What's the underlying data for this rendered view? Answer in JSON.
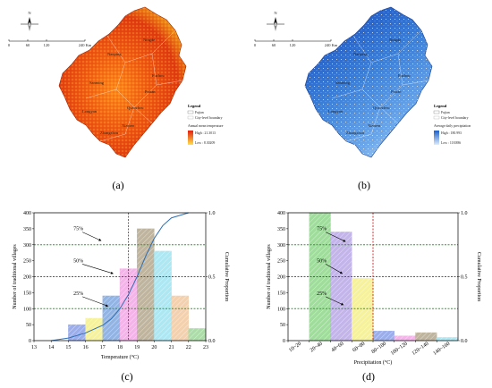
{
  "panels": {
    "a": {
      "caption": "(a)",
      "scale_labels": [
        "0",
        "60",
        "120",
        "240 Km"
      ],
      "north": "N",
      "cities": [
        "Ningde",
        "Nanping",
        "Sanming",
        "Fuzhou",
        "Putian",
        "Quanzhou",
        "Longyan",
        "Xiamen",
        "Zhangzhou"
      ],
      "legend": {
        "title": "Legend",
        "items": [
          "Fujian",
          "City-level boundary"
        ],
        "ramp_title": "Annual mean temperature",
        "high": "High : 21.3013",
        "low": "Low : 8.30209"
      }
    },
    "b": {
      "caption": "(b)",
      "scale_labels": [
        "0",
        "60",
        "120",
        "240 Km"
      ],
      "north": "N",
      "cities": [
        "Ningde",
        "Nanping",
        "Sanming",
        "Fuzhou",
        "Putian",
        "Quanzhou",
        "Longyan",
        "Xiamen",
        "Zhangzhou"
      ],
      "legend": {
        "title": "Legend",
        "items": [
          "Fujian",
          "City-level boundary"
        ],
        "ramp_title": "Average daily precipitation",
        "high": "High : 180.993",
        "low": "Low : 118.886"
      }
    },
    "c": {
      "caption": "(c)"
    },
    "d": {
      "caption": "(d)"
    }
  },
  "chart_data": [
    {
      "type": "bar",
      "id": "c",
      "xlabel": "Temperature (°C)",
      "ylabel": "Number of traditional villages",
      "y2label": "Cumulative Proportion",
      "x_ticks": [
        "13",
        "14",
        "15",
        "16",
        "17",
        "18",
        "19",
        "20",
        "21",
        "22",
        "23"
      ],
      "y_ticks": [
        "0",
        "50",
        "100",
        "150",
        "200",
        "250",
        "300",
        "350",
        "400"
      ],
      "y2_ticks": [
        "0.0",
        "0.5",
        "1.0"
      ],
      "xlim": [
        13,
        23
      ],
      "ylim": [
        0,
        400
      ],
      "bars": [
        {
          "x0": 15,
          "x1": 16,
          "value": 50,
          "color": "#8aa0e8"
        },
        {
          "x0": 16,
          "x1": 17,
          "value": 70,
          "color": "#f5f08a"
        },
        {
          "x0": 17,
          "x1": 18,
          "value": 140,
          "color": "#7fa7e0"
        },
        {
          "x0": 18,
          "x1": 19,
          "value": 225,
          "color": "#f3a6e6"
        },
        {
          "x0": 19,
          "x1": 20,
          "value": 350,
          "color": "#b5a88c"
        },
        {
          "x0": 20,
          "x1": 21,
          "value": 280,
          "color": "#9fe3f0"
        },
        {
          "x0": 21,
          "x1": 22,
          "value": 140,
          "color": "#f2c9a0"
        },
        {
          "x0": 22,
          "x1": 23,
          "value": 38,
          "color": "#9ed89a"
        }
      ],
      "cumulative": {
        "x": [
          14,
          15,
          16,
          17,
          17.5,
          18,
          18.5,
          19,
          19.5,
          20,
          20.5,
          21,
          22
        ],
        "y": [
          0.0,
          0.02,
          0.06,
          0.12,
          0.17,
          0.25,
          0.36,
          0.5,
          0.66,
          0.8,
          0.9,
          0.96,
          1.0
        ],
        "color": "#2f6fb6"
      },
      "ref_lines": [
        {
          "y": 100,
          "label": "25%",
          "color": "#2e9e2e"
        },
        {
          "y": 200,
          "label": "50%",
          "color": "#c03030"
        },
        {
          "y": 300,
          "label": "75%",
          "color": "#2e9e2e"
        }
      ],
      "vline": {
        "x": 18.5,
        "color": "#d02020"
      },
      "annotations": [
        {
          "label": "75%",
          "tx": 15.3,
          "ty": 345,
          "ax": 16.9,
          "ay": 313
        },
        {
          "label": "50%",
          "tx": 15.3,
          "ty": 245,
          "ax": 17.6,
          "ay": 210
        },
        {
          "label": "25%",
          "tx": 15.3,
          "ty": 143,
          "ax": 17.3,
          "ay": 108
        }
      ]
    },
    {
      "type": "bar",
      "id": "d",
      "xlabel": "Precipitation (°C)",
      "ylabel": "Number of traditional villages",
      "y2label": "Cumulative Proportion",
      "categories": [
        "10~20",
        "20~40",
        "40~60",
        "60~80",
        "80~100",
        "100~120",
        "120~140",
        "140~160"
      ],
      "y_ticks": [
        "0",
        "50",
        "100",
        "150",
        "200",
        "250",
        "300",
        "350",
        "400"
      ],
      "y2_ticks": [
        "0.0",
        "0.5",
        "1.0"
      ],
      "ylim": [
        0,
        400
      ],
      "values": [
        0,
        400,
        340,
        195,
        30,
        15,
        25,
        10
      ],
      "colors": [
        "#cccccc",
        "#8fd88a",
        "#b9a7e6",
        "#f5f08a",
        "#8aa0e8",
        "#f3a6e6",
        "#b5a88c",
        "#9fe3f0"
      ],
      "ref_lines": [
        {
          "y": 100,
          "label": "25%",
          "color": "#2e9e2e"
        },
        {
          "y": 200,
          "label": "50%",
          "color": "#c03030"
        },
        {
          "y": 300,
          "label": "75%",
          "color": "#2e9e2e"
        }
      ],
      "vline_index": 4,
      "annotations": [
        {
          "label": "75%",
          "ti": 1.35,
          "ty": 345,
          "ai": 2.7,
          "ay": 310
        },
        {
          "label": "50%",
          "ti": 1.35,
          "ty": 245,
          "ai": 2.55,
          "ay": 210
        },
        {
          "label": "25%",
          "ti": 1.35,
          "ty": 143,
          "ai": 2.6,
          "ay": 112
        }
      ]
    }
  ],
  "colors": {
    "map_a_hot": "#e03010",
    "map_a_warm": "#f07a10",
    "map_b_deep": "#1f5fc8",
    "map_b_light": "#9cc6f0"
  }
}
